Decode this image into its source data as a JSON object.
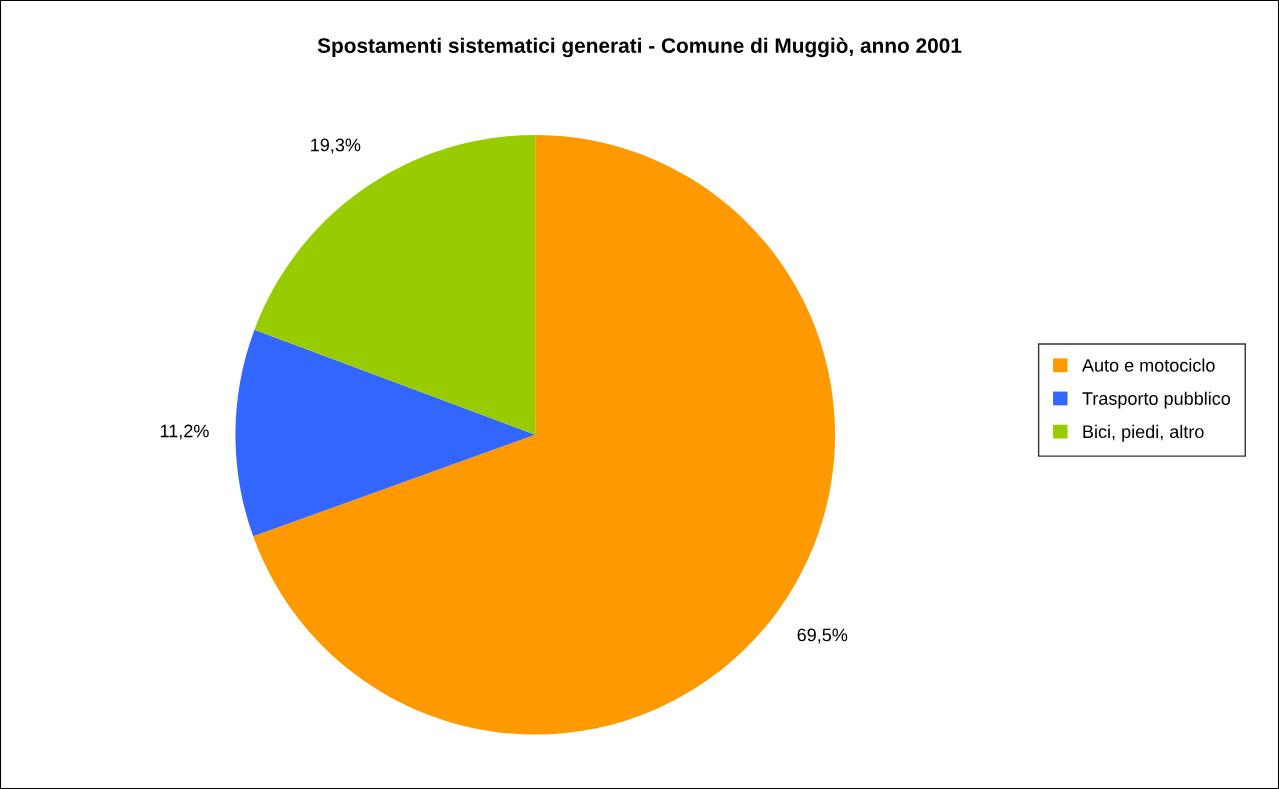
{
  "chart_data": {
    "type": "pie",
    "title": "Spostamenti sistematici generati - Comune di Muggiò, anno 2001",
    "categories": [
      "Auto e motociclo",
      "Trasporto pubblico",
      "Bici, piedi, altro"
    ],
    "values": [
      69.5,
      11.2,
      19.3
    ],
    "colors": [
      "#ff9900",
      "#3366ff",
      "#99cc00"
    ],
    "value_labels": [
      "69,5%",
      "11,2%",
      "19,3%"
    ],
    "legend": "right"
  }
}
